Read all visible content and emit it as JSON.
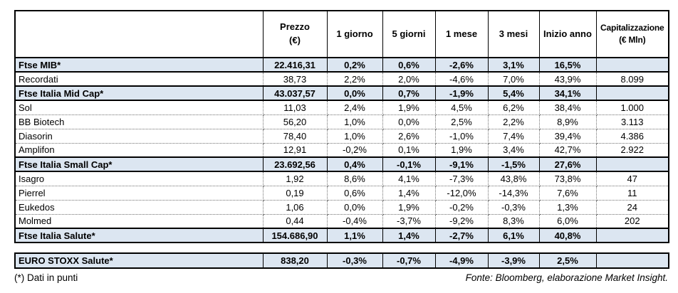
{
  "chart_data": {
    "type": "table",
    "header": {
      "price_line1": "Prezzo",
      "price_line2": "(€)",
      "d1": "1 giorno",
      "d5": "5 giorni",
      "m1": "1 mese",
      "m3": "3 mesi",
      "ytd": "Inizio anno",
      "cap_line1": "Capitalizzazione",
      "cap_line2": "(€ Mln)"
    },
    "rows": [
      {
        "type": "index",
        "name": "Ftse MIB*",
        "price": "22.416,31",
        "d1": "0,2%",
        "d5": "0,6%",
        "m1": "-2,6%",
        "m3": "3,1%",
        "ytd": "16,5%",
        "cap": ""
      },
      {
        "type": "stock",
        "name": "Recordati",
        "price": "38,73",
        "d1": "2,2%",
        "d5": "2,0%",
        "m1": "-4,6%",
        "m3": "7,0%",
        "ytd": "43,9%",
        "cap": "8.099"
      },
      {
        "type": "index",
        "name": "Ftse Italia Mid Cap*",
        "price": "43.037,57",
        "d1": "0,0%",
        "d5": "0,7%",
        "m1": "-1,9%",
        "m3": "5,4%",
        "ytd": "34,1%",
        "cap": ""
      },
      {
        "type": "stock",
        "name": "Sol",
        "price": "11,03",
        "d1": "2,4%",
        "d5": "1,9%",
        "m1": "4,5%",
        "m3": "6,2%",
        "ytd": "38,4%",
        "cap": "1.000"
      },
      {
        "type": "stock",
        "name": "BB Biotech",
        "price": "56,20",
        "d1": "1,0%",
        "d5": "0,0%",
        "m1": "2,5%",
        "m3": "2,2%",
        "ytd": "8,9%",
        "cap": "3.113"
      },
      {
        "type": "stock",
        "name": "Diasorin",
        "price": "78,40",
        "d1": "1,0%",
        "d5": "2,6%",
        "m1": "-1,0%",
        "m3": "7,4%",
        "ytd": "39,4%",
        "cap": "4.386"
      },
      {
        "type": "stock",
        "name": "Amplifon",
        "price": "12,91",
        "d1": "-0,2%",
        "d5": "0,1%",
        "m1": "1,9%",
        "m3": "3,4%",
        "ytd": "42,7%",
        "cap": "2.922"
      },
      {
        "type": "index",
        "name": "Ftse Italia Small Cap*",
        "price": "23.692,56",
        "d1": "0,4%",
        "d5": "-0,1%",
        "m1": "-9,1%",
        "m3": "-1,5%",
        "ytd": "27,6%",
        "cap": ""
      },
      {
        "type": "stock",
        "name": "Isagro",
        "price": "1,92",
        "d1": "8,6%",
        "d5": "4,1%",
        "m1": "-7,3%",
        "m3": "43,8%",
        "ytd": "73,8%",
        "cap": "47"
      },
      {
        "type": "stock",
        "name": "Pierrel",
        "price": "0,19",
        "d1": "0,6%",
        "d5": "1,4%",
        "m1": "-12,0%",
        "m3": "-14,3%",
        "ytd": "7,6%",
        "cap": "11"
      },
      {
        "type": "stock",
        "name": "Eukedos",
        "price": "1,06",
        "d1": "0,0%",
        "d5": "1,9%",
        "m1": "-0,2%",
        "m3": "-0,3%",
        "ytd": "1,3%",
        "cap": "24"
      },
      {
        "type": "stock",
        "name": "Molmed",
        "price": "0,44",
        "d1": "-0,4%",
        "d5": "-3,7%",
        "m1": "-9,2%",
        "m3": "8,3%",
        "ytd": "6,0%",
        "cap": "202"
      },
      {
        "type": "index",
        "name": "Ftse Italia Salute*",
        "price": "154.686,90",
        "d1": "1,1%",
        "d5": "1,4%",
        "m1": "-2,7%",
        "m3": "6,1%",
        "ytd": "40,8%",
        "cap": ""
      }
    ],
    "separate_row": {
      "type": "index",
      "name": "EURO STOXX Salute*",
      "price": "838,20",
      "d1": "-0,3%",
      "d5": "-0,7%",
      "m1": "-4,9%",
      "m3": "-3,9%",
      "ytd": "2,5%",
      "cap": ""
    }
  },
  "footer": {
    "note": "(*) Dati in punti",
    "source": "Fonte: Bloomberg, elaborazione Market Insight."
  },
  "colors": {
    "index_row_bg": "#dce6f1",
    "border": "#000000",
    "text": "#000000"
  }
}
